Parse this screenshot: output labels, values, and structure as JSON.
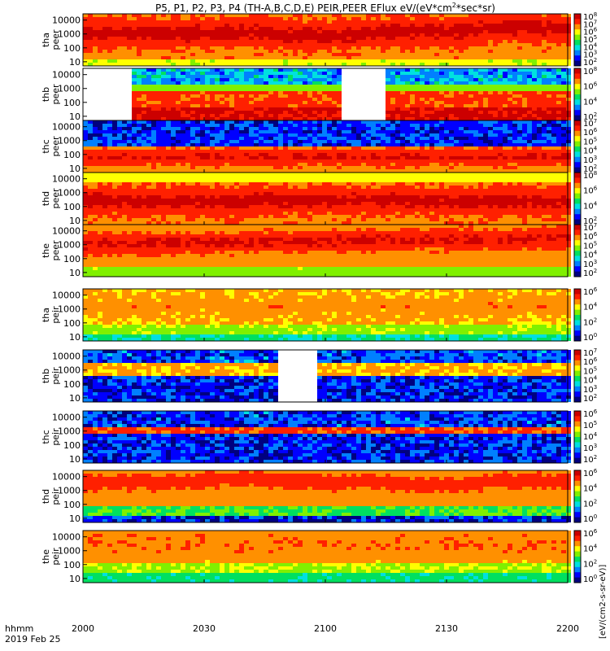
{
  "chart_data": {
    "type": "heatmap",
    "title": "P5, P1, P2, P3, P4 (TH-A,B,C,D,E) PEIR,PEER EFlux eV/(eV*cm2*sec*sr)",
    "title_parts": {
      "main": "P5, P1, P2, P3, P4 (TH-A,B,C,D,E) PEIR,PEER EFlux eV/(eV*cm",
      "sup": "2",
      "tail": "*sec*sr)"
    },
    "x_axis": {
      "ticks": [
        "2000",
        "2030",
        "2100",
        "2130",
        "2200"
      ],
      "units_label": "hhmm",
      "date_label": "2019 Feb 25"
    },
    "y_ticks": [
      "10",
      "100",
      "1000",
      "10000"
    ],
    "colorbar_label": "[eV/(cm2-s-sr-eV)]",
    "colors": {
      "palette": [
        "#ffffff",
        "#000080",
        "#0000ff",
        "#0080ff",
        "#00e0e0",
        "#00e060",
        "#80f000",
        "#ffff00",
        "#ff9000",
        "#ff2000",
        "#cc0000"
      ]
    },
    "panels": [
      {
        "probe": "tha",
        "species": "peer",
        "cb_ticks": [
          "10^2",
          "10^3",
          "10^4",
          "10^5",
          "10^6",
          "10^7",
          "10^8"
        ]
      },
      {
        "probe": "thb",
        "species": "peer",
        "cb_ticks": [
          "10^2",
          "10^4",
          "10^6",
          "10^8"
        ]
      },
      {
        "probe": "thc",
        "species": "peer",
        "cb_ticks": [
          "10^2",
          "10^3",
          "10^4",
          "10^5",
          "10^6",
          "10^7"
        ]
      },
      {
        "probe": "thd",
        "species": "peer",
        "cb_ticks": [
          "10^2",
          "10^4",
          "10^6",
          "10^8"
        ]
      },
      {
        "probe": "the",
        "species": "peer",
        "cb_ticks": [
          "10^2",
          "10^3",
          "10^4",
          "10^5",
          "10^6",
          "10^7"
        ]
      },
      {
        "probe": "tha",
        "species": "peir",
        "cb_ticks": [
          "10^0",
          "10^2",
          "10^4",
          "10^6"
        ]
      },
      {
        "probe": "thb",
        "species": "peir",
        "cb_ticks": [
          "10^2",
          "10^3",
          "10^4",
          "10^5",
          "10^6",
          "10^7"
        ]
      },
      {
        "probe": "thc",
        "species": "peir",
        "cb_ticks": [
          "10^2",
          "10^3",
          "10^4",
          "10^5",
          "10^6"
        ]
      },
      {
        "probe": "thd",
        "species": "peir",
        "cb_ticks": [
          "10^0",
          "10^2",
          "10^4",
          "10^6"
        ]
      },
      {
        "probe": "the",
        "species": "peir",
        "cb_ticks": [
          "10^0",
          "10^2",
          "10^4",
          "10^6"
        ]
      }
    ]
  }
}
